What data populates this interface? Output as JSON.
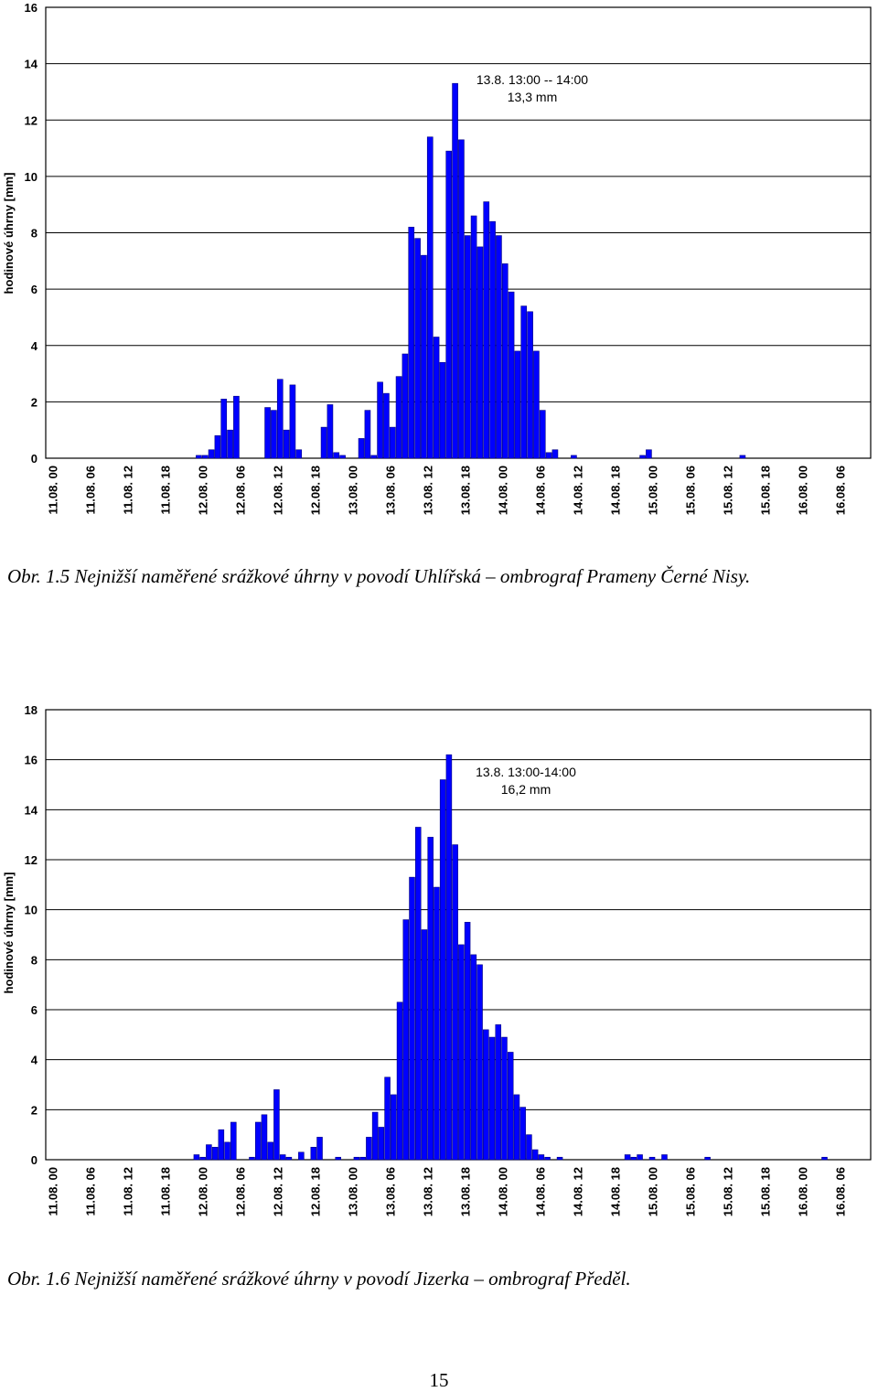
{
  "chart_data": [
    {
      "type": "bar",
      "ylabel": "hodinové úhrny [mm]",
      "ylim": [
        0,
        16
      ],
      "yticks": [
        0,
        2,
        4,
        6,
        8,
        10,
        12,
        14,
        16
      ],
      "xticks": [
        "11.08. 00",
        "11.08. 06",
        "11.08. 12",
        "11.08. 18",
        "12.08. 00",
        "12.08. 06",
        "12.08. 12",
        "12.08. 18",
        "13.08. 00",
        "13.08. 06",
        "13.08. 12",
        "13.08. 18",
        "14.08. 00",
        "14.08. 06",
        "14.08. 12",
        "14.08. 18",
        "15.08. 00",
        "15.08. 06",
        "15.08. 12",
        "15.08. 18",
        "16.08. 00",
        "16.08. 06"
      ],
      "grid": "horizontal",
      "bar_color": "#0000ff",
      "annotation": [
        "13.8. 13:00 -- 14:00",
        "13,3 mm"
      ],
      "values": [
        0,
        0,
        0,
        0,
        0,
        0,
        0,
        0,
        0,
        0,
        0,
        0,
        0,
        0,
        0,
        0,
        0,
        0,
        0,
        0,
        0,
        0,
        0,
        0,
        0.1,
        0.1,
        0.3,
        0.8,
        2.1,
        1.0,
        2.2,
        0,
        0,
        0,
        0,
        1.8,
        1.7,
        2.8,
        1.0,
        2.6,
        0.3,
        0,
        0,
        0,
        1.1,
        1.9,
        0.2,
        0.1,
        0,
        0,
        0.7,
        1.7,
        0.1,
        2.7,
        2.3,
        1.1,
        2.9,
        3.7,
        8.2,
        7.8,
        7.2,
        11.4,
        4.3,
        3.4,
        10.9,
        13.3,
        11.3,
        7.9,
        8.6,
        7.5,
        9.1,
        8.4,
        7.9,
        6.9,
        5.9,
        3.8,
        5.4,
        5.2,
        3.8,
        1.7,
        0.2,
        0.3,
        0,
        0,
        0.1,
        0,
        0,
        0,
        0,
        0,
        0,
        0,
        0,
        0,
        0,
        0.1,
        0.3,
        0,
        0,
        0,
        0,
        0,
        0,
        0,
        0,
        0,
        0,
        0,
        0,
        0,
        0,
        0.1,
        0,
        0,
        0,
        0,
        0,
        0,
        0,
        0,
        0,
        0,
        0,
        0,
        0,
        0,
        0,
        0,
        0,
        0,
        0,
        0
      ]
    },
    {
      "type": "bar",
      "ylabel": "hodinové úhrny [mm]",
      "ylim": [
        0,
        18
      ],
      "yticks": [
        0,
        2,
        4,
        6,
        8,
        10,
        12,
        14,
        16,
        18
      ],
      "xticks": [
        "11.08. 00",
        "11.08. 06",
        "11.08. 12",
        "11.08. 18",
        "12.08. 00",
        "12.08. 06",
        "12.08. 12",
        "12.08. 18",
        "13.08. 00",
        "13.08. 06",
        "13.08. 12",
        "13.08. 18",
        "14.08. 00",
        "14.08. 06",
        "14.08. 12",
        "14.08. 18",
        "15.08. 00",
        "15.08. 06",
        "15.08. 12",
        "15.08. 18",
        "16.08. 00",
        "16.08. 06"
      ],
      "grid": "horizontal",
      "bar_color": "#0000ff",
      "annotation": [
        "13.8. 13:00-14:00",
        "16,2 mm"
      ],
      "values": [
        0,
        0,
        0,
        0,
        0,
        0,
        0,
        0,
        0,
        0,
        0,
        0,
        0,
        0,
        0,
        0,
        0,
        0,
        0,
        0,
        0,
        0,
        0,
        0,
        0.2,
        0.1,
        0.6,
        0.5,
        1.2,
        0.7,
        1.5,
        0,
        0,
        0.1,
        1.5,
        1.8,
        0.7,
        2.8,
        0.2,
        0.1,
        0,
        0.3,
        0,
        0.5,
        0.9,
        0,
        0,
        0.1,
        0,
        0,
        0.1,
        0.1,
        0.9,
        1.9,
        1.3,
        3.3,
        2.6,
        6.3,
        9.6,
        11.3,
        13.3,
        9.2,
        12.9,
        10.9,
        15.2,
        16.2,
        12.6,
        8.6,
        9.5,
        8.2,
        7.8,
        5.2,
        4.9,
        5.4,
        4.9,
        4.3,
        2.6,
        2.1,
        1.0,
        0.4,
        0.2,
        0.1,
        0,
        0.1,
        0,
        0,
        0,
        0,
        0,
        0,
        0,
        0,
        0,
        0,
        0.2,
        0.1,
        0.2,
        0,
        0.1,
        0,
        0.2,
        0,
        0,
        0,
        0,
        0,
        0,
        0.1,
        0,
        0,
        0,
        0,
        0,
        0,
        0,
        0,
        0,
        0,
        0,
        0,
        0,
        0,
        0,
        0,
        0,
        0,
        0.1,
        0,
        0,
        0,
        0,
        0,
        0,
        0
      ]
    }
  ],
  "captions": {
    "chart1": "Obr. 1.5 Nejnižší naměřené srážkové úhrny v povodí Uhlířská – ombrograf Prameny Černé Nisy.",
    "chart2": "Obr. 1.6 Nejnižší naměřené srážkové úhrny v povodí Jizerka – ombrograf Předěl."
  },
  "page_number": "15"
}
